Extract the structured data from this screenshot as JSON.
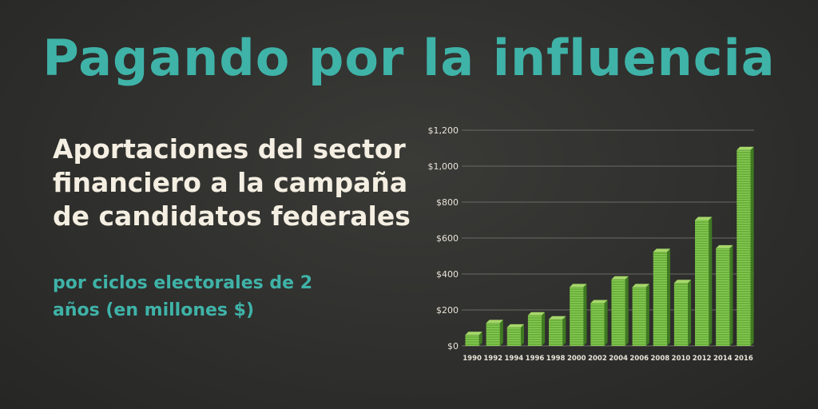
{
  "header": {
    "title": "Pagando por la influencia"
  },
  "text": {
    "subtitle": "Aportaciones del sector financiero a la campaña de candidatos federales",
    "note": "por ciclos electorales de 2 años (en millones $)"
  },
  "colors": {
    "accent": "#3fb3a8",
    "text": "#f4efe2",
    "bar_front": "#6ab23a",
    "bar_top": "#a6d86a",
    "bar_side": "#3f7a22"
  },
  "chart_data": {
    "type": "bar",
    "title": "",
    "xlabel": "",
    "ylabel": "",
    "categories": [
      "1990",
      "1992",
      "1994",
      "1996",
      "1998",
      "2000",
      "2002",
      "2004",
      "2006",
      "2008",
      "2010",
      "2012",
      "2014",
      "2016"
    ],
    "values": [
      61,
      127,
      103,
      170,
      148,
      327,
      238,
      370,
      327,
      523,
      350,
      700,
      543,
      1090
    ],
    "ylim": [
      0,
      1200
    ],
    "yticks": [
      0,
      200,
      400,
      600,
      800,
      1000,
      1200
    ],
    "ytick_labels": [
      "$0",
      "$200",
      "$400",
      "$600",
      "$800",
      "$1,000",
      "$1,200"
    ],
    "grid": true,
    "legend": "none"
  }
}
